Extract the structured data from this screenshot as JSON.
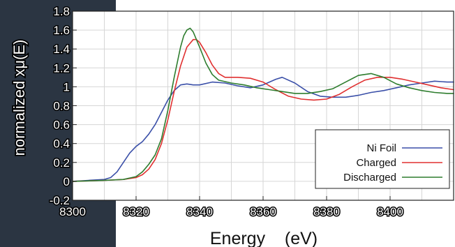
{
  "chart_data": {
    "type": "line",
    "title": "",
    "xlabel": "Energy    (eV)",
    "ylabel": "normalized xμ(E)",
    "xlim": [
      8300,
      8420
    ],
    "ylim": [
      -0.2,
      1.8
    ],
    "x_ticks": [
      "8300",
      "8320",
      "8340",
      "8360",
      "8380",
      "8400"
    ],
    "x_tick_values": [
      8300,
      8320,
      8340,
      8360,
      8380,
      8400
    ],
    "y_ticks": [
      "-0.2",
      "0",
      "0.2",
      "0.4",
      "0.6",
      "0.8",
      "1",
      "1.2",
      "1.4",
      "1.6",
      "1.8"
    ],
    "y_tick_values": [
      -0.2,
      0,
      0.2,
      0.4,
      0.6,
      0.8,
      1.0,
      1.2,
      1.4,
      1.6,
      1.8
    ],
    "grid": true,
    "legend_position": "bottom-right",
    "series": [
      {
        "name": "Ni Foil",
        "color": "#3a4fa8",
        "x": [
          8300,
          8305,
          8310,
          8312,
          8314,
          8316,
          8318,
          8320,
          8322,
          8324,
          8326,
          8328,
          8330,
          8332,
          8334,
          8336,
          8338,
          8340,
          8344,
          8348,
          8352,
          8356,
          8360,
          8364,
          8366,
          8370,
          8374,
          8378,
          8382,
          8386,
          8390,
          8394,
          8398,
          8402,
          8406,
          8410,
          8414,
          8418,
          8420
        ],
        "y": [
          0.0,
          0.01,
          0.02,
          0.04,
          0.1,
          0.2,
          0.3,
          0.37,
          0.42,
          0.5,
          0.6,
          0.73,
          0.86,
          0.96,
          1.02,
          1.03,
          1.02,
          1.02,
          1.05,
          1.04,
          1.01,
          0.99,
          1.02,
          1.08,
          1.1,
          1.04,
          0.95,
          0.9,
          0.89,
          0.89,
          0.91,
          0.94,
          0.96,
          0.99,
          1.02,
          1.04,
          1.06,
          1.05,
          1.05
        ]
      },
      {
        "name": "Charged",
        "color": "#e03030",
        "x": [
          8300,
          8310,
          8316,
          8320,
          8322,
          8324,
          8326,
          8328,
          8330,
          8332,
          8334,
          8336,
          8338,
          8339,
          8340,
          8342,
          8344,
          8346,
          8348,
          8352,
          8356,
          8360,
          8364,
          8368,
          8372,
          8376,
          8380,
          8384,
          8388,
          8392,
          8396,
          8400,
          8404,
          8408,
          8412,
          8416,
          8420
        ],
        "y": [
          0.0,
          0.01,
          0.02,
          0.04,
          0.07,
          0.13,
          0.23,
          0.4,
          0.65,
          0.95,
          1.22,
          1.42,
          1.5,
          1.5,
          1.47,
          1.36,
          1.23,
          1.14,
          1.1,
          1.1,
          1.09,
          1.05,
          0.97,
          0.9,
          0.87,
          0.86,
          0.87,
          0.92,
          1.0,
          1.07,
          1.1,
          1.1,
          1.08,
          1.05,
          1.02,
          0.99,
          0.97
        ]
      },
      {
        "name": "Discharged",
        "color": "#2e7d2e",
        "x": [
          8300,
          8310,
          8316,
          8320,
          8322,
          8324,
          8326,
          8328,
          8330,
          8332,
          8334,
          8335,
          8336,
          8337,
          8338,
          8340,
          8342,
          8344,
          8346,
          8350,
          8354,
          8358,
          8362,
          8366,
          8370,
          8374,
          8378,
          8382,
          8386,
          8390,
          8394,
          8398,
          8402,
          8406,
          8410,
          8414,
          8418,
          8420
        ],
        "y": [
          0.0,
          0.01,
          0.02,
          0.05,
          0.1,
          0.18,
          0.28,
          0.45,
          0.75,
          1.1,
          1.42,
          1.54,
          1.6,
          1.62,
          1.58,
          1.42,
          1.25,
          1.13,
          1.07,
          1.04,
          1.02,
          0.99,
          0.97,
          0.95,
          0.93,
          0.93,
          0.95,
          0.98,
          1.05,
          1.12,
          1.14,
          1.1,
          1.03,
          0.99,
          0.96,
          0.94,
          0.93,
          0.93
        ]
      }
    ]
  }
}
